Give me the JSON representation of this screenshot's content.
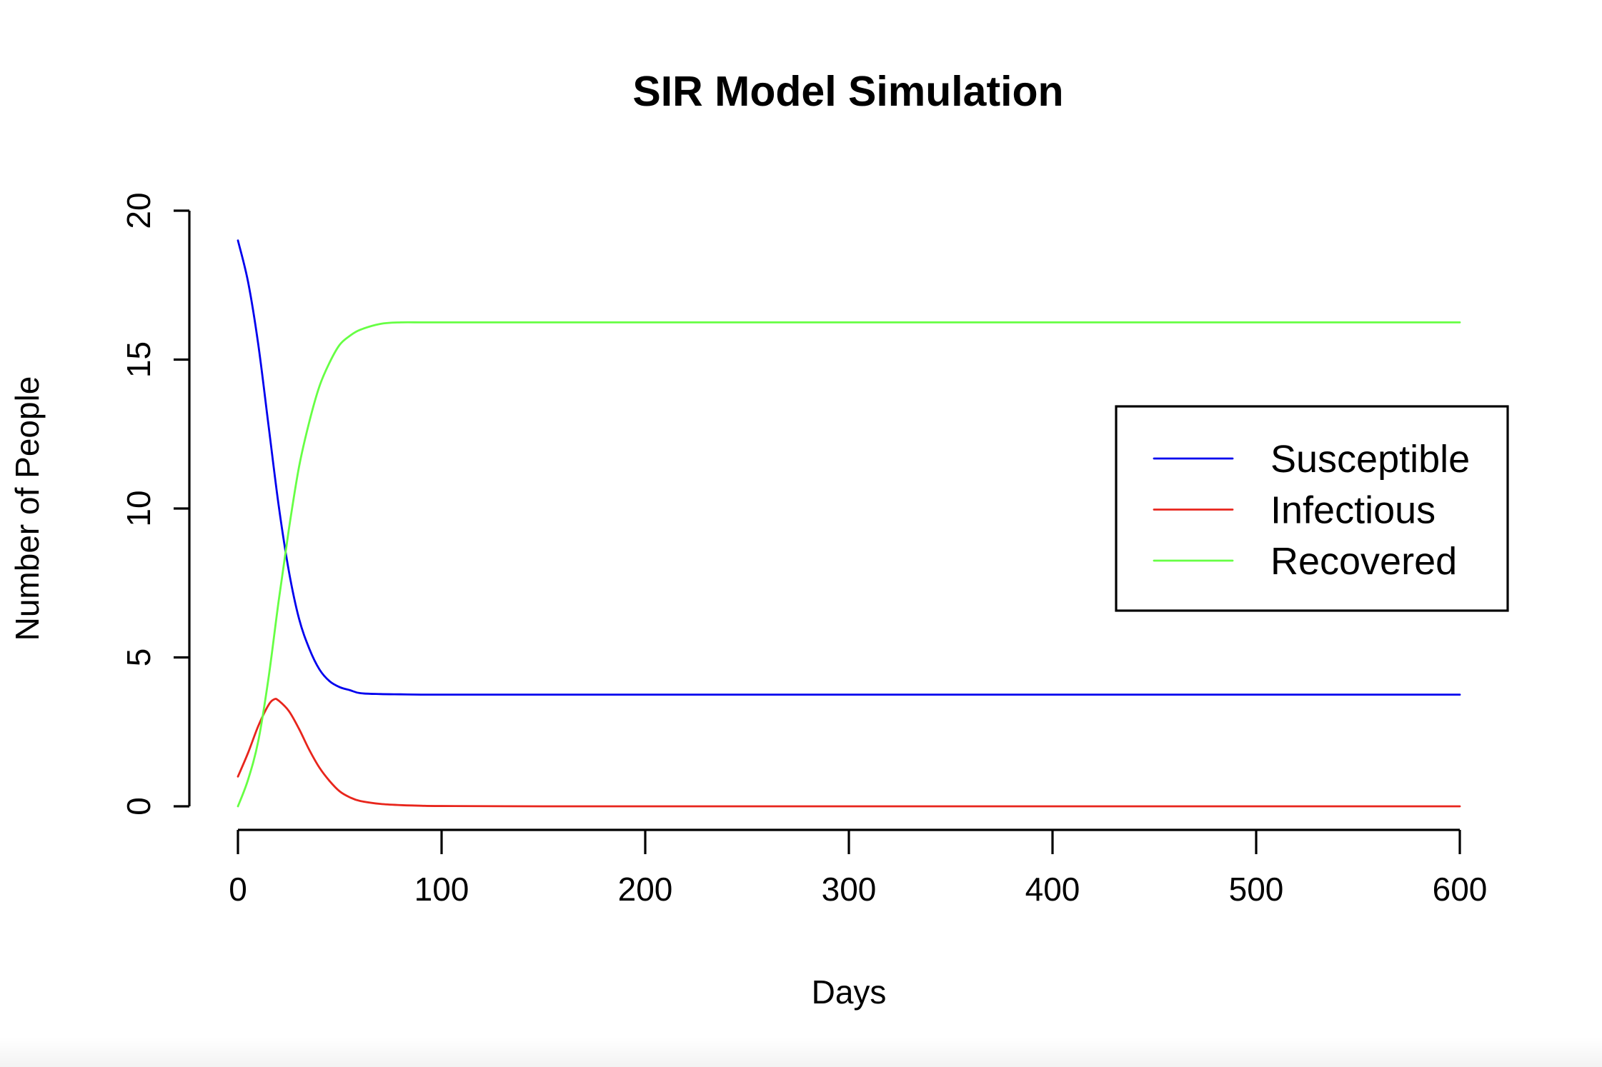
{
  "chart_data": {
    "type": "line",
    "title": "SIR Model Simulation",
    "xlabel": "Days",
    "ylabel": "Number of People",
    "xlim": [
      0,
      600
    ],
    "ylim": [
      0,
      20
    ],
    "x_ticks": [
      0,
      100,
      200,
      300,
      400,
      500,
      600
    ],
    "y_ticks": [
      0,
      5,
      10,
      15,
      20
    ],
    "grid": false,
    "legend_position": "right",
    "series": [
      {
        "name": "Susceptible",
        "color": "#0000ee",
        "x": [
          0,
          5,
          10,
          15,
          20,
          25,
          30,
          35,
          40,
          45,
          50,
          55,
          60,
          70,
          80,
          90,
          100,
          150,
          200,
          300,
          400,
          500,
          600
        ],
        "y": [
          19.0,
          17.6,
          15.5,
          12.8,
          10.1,
          7.9,
          6.3,
          5.3,
          4.6,
          4.2,
          4.0,
          3.9,
          3.8,
          3.77,
          3.76,
          3.75,
          3.75,
          3.75,
          3.75,
          3.75,
          3.75,
          3.75,
          3.75
        ]
      },
      {
        "name": "Infectious",
        "color": "#e8251c",
        "x": [
          0,
          5,
          10,
          15,
          18,
          20,
          25,
          30,
          35,
          40,
          45,
          50,
          55,
          60,
          70,
          80,
          90,
          100,
          150,
          200,
          300,
          400,
          500,
          600
        ],
        "y": [
          1.0,
          1.8,
          2.7,
          3.4,
          3.6,
          3.55,
          3.2,
          2.6,
          1.9,
          1.3,
          0.85,
          0.5,
          0.3,
          0.18,
          0.08,
          0.04,
          0.02,
          0.01,
          0.0,
          0.0,
          0.0,
          0.0,
          0.0,
          0.0
        ]
      },
      {
        "name": "Recovered",
        "color": "#66ff44",
        "x": [
          0,
          5,
          10,
          15,
          20,
          25,
          30,
          35,
          40,
          45,
          50,
          55,
          60,
          70,
          80,
          90,
          100,
          150,
          200,
          300,
          400,
          500,
          600
        ],
        "y": [
          0.0,
          0.9,
          2.2,
          4.3,
          6.9,
          9.3,
          11.4,
          12.9,
          14.1,
          14.9,
          15.5,
          15.8,
          16.0,
          16.2,
          16.25,
          16.25,
          16.25,
          16.25,
          16.25,
          16.25,
          16.25,
          16.25,
          16.25
        ]
      }
    ]
  }
}
